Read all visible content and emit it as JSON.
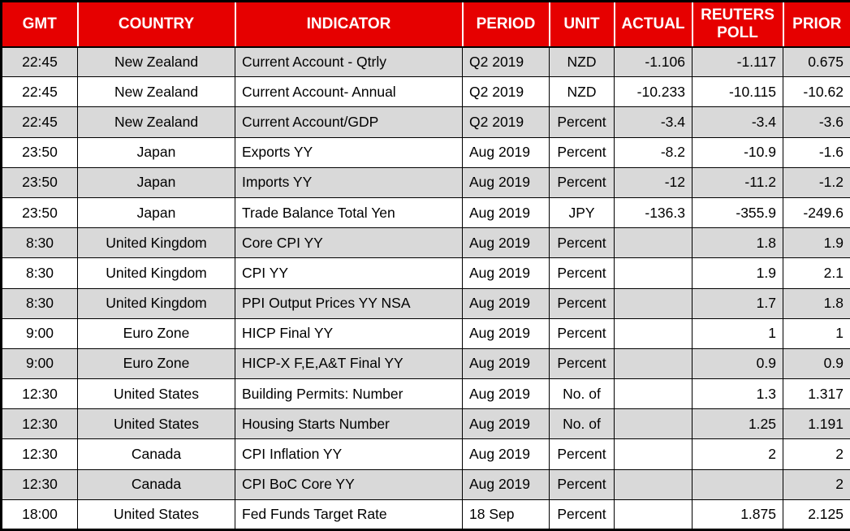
{
  "table": {
    "name": "economic-calendar",
    "columns": [
      {
        "key": "gmt",
        "label": "GMT",
        "align": "center"
      },
      {
        "key": "country",
        "label": "COUNTRY",
        "align": "center"
      },
      {
        "key": "indicator",
        "label": "INDICATOR",
        "align": "left"
      },
      {
        "key": "period",
        "label": "PERIOD",
        "align": "left"
      },
      {
        "key": "unit",
        "label": "UNIT",
        "align": "center"
      },
      {
        "key": "actual",
        "label": "ACTUAL",
        "align": "right"
      },
      {
        "key": "reuters_poll",
        "label": "REUTERS POLL",
        "align": "right"
      },
      {
        "key": "prior",
        "label": "PRIOR",
        "align": "right"
      }
    ],
    "rows": [
      [
        "22:45",
        "New Zealand",
        "Current Account - Qtrly",
        "Q2 2019",
        "NZD",
        "-1.106",
        "-1.117",
        "0.675"
      ],
      [
        "22:45",
        "New Zealand",
        "Current Account- Annual",
        "Q2 2019",
        "NZD",
        "-10.233",
        "-10.115",
        "-10.62"
      ],
      [
        "22:45",
        "New Zealand",
        "Current Account/GDP",
        "Q2 2019",
        "Percent",
        "-3.4",
        "-3.4",
        "-3.6"
      ],
      [
        "23:50",
        "Japan",
        "Exports YY",
        "Aug 2019",
        "Percent",
        "-8.2",
        "-10.9",
        "-1.6"
      ],
      [
        "23:50",
        "Japan",
        "Imports YY",
        "Aug 2019",
        "Percent",
        "-12",
        "-11.2",
        "-1.2"
      ],
      [
        "23:50",
        "Japan",
        "Trade Balance Total Yen",
        "Aug 2019",
        "JPY",
        "-136.3",
        "-355.9",
        "-249.6"
      ],
      [
        "8:30",
        "United Kingdom",
        "Core CPI YY",
        "Aug 2019",
        "Percent",
        "",
        "1.8",
        "1.9"
      ],
      [
        "8:30",
        "United Kingdom",
        "CPI YY",
        "Aug 2019",
        "Percent",
        "",
        "1.9",
        "2.1"
      ],
      [
        "8:30",
        "United Kingdom",
        "PPI Output Prices YY NSA",
        "Aug 2019",
        "Percent",
        "",
        "1.7",
        "1.8"
      ],
      [
        "9:00",
        "Euro Zone",
        "HICP Final YY",
        "Aug 2019",
        "Percent",
        "",
        "1",
        "1"
      ],
      [
        "9:00",
        "Euro Zone",
        "HICP-X F,E,A&T Final YY",
        "Aug 2019",
        "Percent",
        "",
        "0.9",
        "0.9"
      ],
      [
        "12:30",
        "United States",
        "Building Permits: Number",
        "Aug 2019",
        "No. of",
        "",
        "1.3",
        "1.317"
      ],
      [
        "12:30",
        "United States",
        "Housing Starts Number",
        "Aug 2019",
        "No. of",
        "",
        "1.25",
        "1.191"
      ],
      [
        "12:30",
        "Canada",
        "CPI Inflation YY",
        "Aug 2019",
        "Percent",
        "",
        "2",
        "2"
      ],
      [
        "12:30",
        "Canada",
        "CPI BoC Core YY",
        "Aug 2019",
        "Percent",
        "",
        "",
        "2"
      ],
      [
        "18:00",
        "United States",
        "Fed Funds Target Rate",
        "18 Sep",
        "Percent",
        "",
        "1.875",
        "2.125"
      ]
    ]
  },
  "colors": {
    "header_bg": "#e60000",
    "header_text": "#ffffff",
    "row_alt_bg": "#d9d9d9",
    "row_bg": "#ffffff",
    "border": "#000000"
  }
}
